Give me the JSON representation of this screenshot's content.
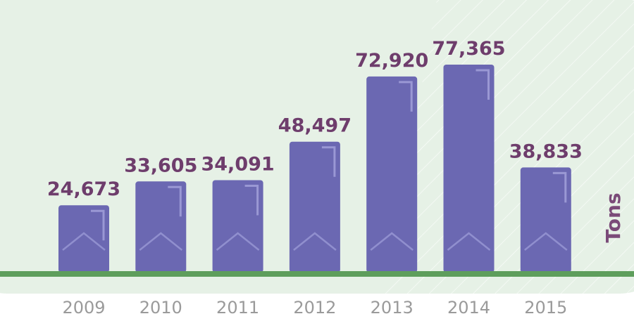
{
  "chart_data": {
    "type": "bar",
    "categories": [
      "2009",
      "2010",
      "2011",
      "2012",
      "2013",
      "2014",
      "2015"
    ],
    "values": [
      24673,
      33605,
      34091,
      48497,
      72920,
      77365,
      38833
    ],
    "value_labels": [
      "24,673",
      "33,605",
      "34,091",
      "48,497",
      "72,920",
      "77,365",
      "38,833"
    ],
    "ylabel": "Tons",
    "title": "",
    "xlabel": "",
    "ylim": [
      0,
      77365
    ],
    "grid": false,
    "legend": "none"
  },
  "colors": {
    "panel_background": "#e6f1e6",
    "bar": "#6b68b2",
    "bar_outline": "#9a98d4",
    "baseline": "#5e9e5c",
    "value_label": "#6e3d6c",
    "tick_label": "#9a9a9a",
    "axis_title": "#7a4a78",
    "hatch": "#ffffff"
  }
}
